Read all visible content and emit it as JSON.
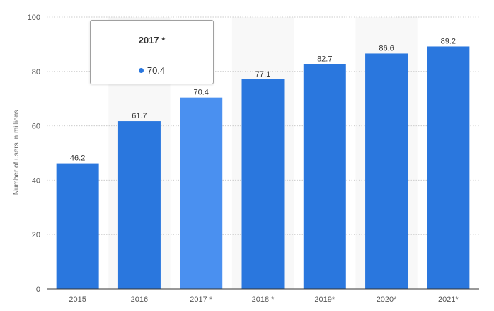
{
  "chart_data": {
    "type": "bar",
    "categories": [
      "2015",
      "2016",
      "2017 *",
      "2018 *",
      "2019*",
      "2020*",
      "2021*"
    ],
    "values": [
      46.2,
      61.7,
      70.4,
      77.1,
      82.7,
      86.6,
      89.2
    ],
    "value_labels": [
      "46.2",
      "61.7",
      "70.4",
      "77.1",
      "82.7",
      "86.6",
      "89.2"
    ],
    "highlighted_index": 2,
    "title": "",
    "xlabel": "",
    "ylabel": "Number of users in millions",
    "ylim": [
      0,
      100
    ],
    "yticks": [
      "0",
      "20",
      "40",
      "60",
      "80",
      "100"
    ],
    "grid": true,
    "colors": {
      "bar": "#2a77de",
      "bar_highlight": "#4a90f0",
      "band": "#f8f8f8",
      "grid": "#cccccc",
      "axis": "#333333"
    }
  },
  "tooltip": {
    "title": "2017 *",
    "value": "70.4",
    "dot_color": "#2a77de"
  }
}
